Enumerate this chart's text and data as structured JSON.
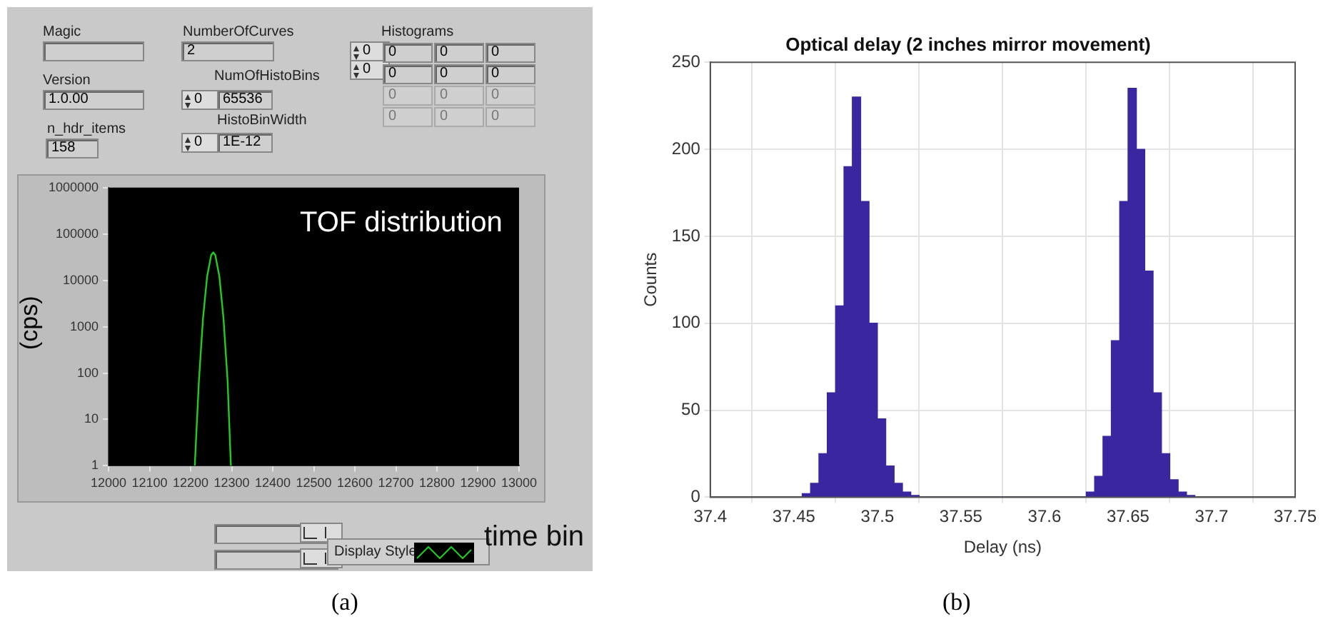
{
  "chart_data": [
    {
      "type": "line",
      "xlabel": "time bin",
      "ylabel": "(cps)",
      "log": "y",
      "grid": false,
      "legend": false,
      "marker": "none",
      "xlim": [
        12000,
        13000
      ],
      "xticks": [
        12000,
        12100,
        12200,
        12300,
        12400,
        12500,
        12600,
        12700,
        12800,
        12900,
        13000
      ],
      "ylim": [
        1,
        1000000
      ],
      "yticks": [
        1,
        10,
        100,
        1000,
        10000,
        100000,
        1000000
      ],
      "series": [
        {
          "color": "#22cc22",
          "x": [
            12210,
            12220,
            12230,
            12240,
            12250,
            12255,
            12260,
            12270,
            12280,
            12290,
            12298
          ],
          "values": [
            1,
            66,
            1500,
            12000,
            35000,
            40000,
            35000,
            12000,
            1500,
            66,
            1
          ]
        }
      ],
      "annotations": [
        "TOF distribution",
        "(a)",
        "Magic",
        "Version",
        "1.0.00",
        "n_hdr_items",
        "158",
        "NumberOfCurves",
        "2",
        "NumOfHistoBins",
        "0",
        "65536",
        "HistoBinWidth",
        "0",
        "1E-12",
        "Histograms",
        "0",
        "0",
        "0",
        "0",
        "0",
        "0",
        "0",
        "0",
        "0",
        "0",
        "0",
        "0",
        "0",
        "0",
        "Display Style"
      ]
    },
    {
      "type": "histogram",
      "title": "Optical delay (2 inches mirror movement)",
      "xlabel": "Delay (ns)",
      "ylabel": "Counts",
      "grid": true,
      "legend": false,
      "color": "#3a27a0",
      "xlim": [
        37.4,
        37.75
      ],
      "xticks": [
        37.4,
        37.45,
        37.5,
        37.55,
        37.6,
        37.65,
        37.7,
        37.75
      ],
      "ylim": [
        0,
        250
      ],
      "yticks": [
        0,
        50,
        100,
        150,
        200,
        250
      ],
      "bins": [
        37.455,
        37.46,
        37.465,
        37.47,
        37.475,
        37.48,
        37.485,
        37.49,
        37.495,
        37.5,
        37.505,
        37.51,
        37.515,
        37.52,
        37.525,
        37.53,
        37.535,
        37.54,
        37.545,
        37.55,
        37.555,
        37.56,
        37.565,
        37.57,
        37.575,
        37.58,
        37.585,
        37.59,
        37.595,
        37.6,
        37.605,
        37.61,
        37.615,
        37.62,
        37.625,
        37.63,
        37.635,
        37.64,
        37.645,
        37.65,
        37.655,
        37.66,
        37.665,
        37.67,
        37.675,
        37.68,
        37.685,
        37.69
      ],
      "values": [
        2,
        8,
        25,
        60,
        110,
        190,
        230,
        170,
        100,
        45,
        18,
        8,
        3,
        1,
        0,
        0,
        0,
        0,
        0,
        0,
        0,
        0,
        0,
        0,
        0,
        0,
        0,
        0,
        0,
        0,
        0,
        0,
        0,
        0,
        3,
        12,
        35,
        90,
        170,
        235,
        200,
        130,
        60,
        25,
        10,
        3,
        1
      ],
      "annotations": [
        "(b)"
      ]
    }
  ]
}
